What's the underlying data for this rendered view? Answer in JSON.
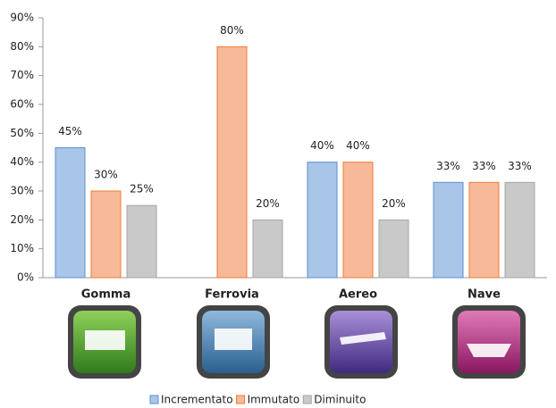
{
  "chart_data": {
    "type": "bar",
    "categories": [
      "Gomma",
      "Ferrovia",
      "Aereo",
      "Nave"
    ],
    "series": [
      {
        "name": "Incrementato",
        "color": "#a9c6e8",
        "stroke": "#5b8fd0",
        "values": [
          45,
          null,
          40,
          33
        ],
        "value_labels": [
          "45%",
          null,
          "40%",
          "33%"
        ]
      },
      {
        "name": "Immutato",
        "color": "#f8b99a",
        "stroke": "#ed7d31",
        "values": [
          30,
          80,
          40,
          33
        ],
        "value_labels": [
          "30%",
          "80%",
          "40%",
          "33%"
        ]
      },
      {
        "name": "Diminuito",
        "color": "#c9c9c9",
        "stroke": "#a5a5a5",
        "values": [
          25,
          20,
          20,
          33
        ],
        "value_labels": [
          "25%",
          "20%",
          "20%",
          "33%"
        ]
      }
    ],
    "ylim": [
      0,
      90
    ],
    "yticks": [
      {
        "value": 0,
        "label": "0%"
      },
      {
        "value": 10,
        "label": "10%"
      },
      {
        "value": 20,
        "label": "20%"
      },
      {
        "value": 30,
        "label": "30%"
      },
      {
        "value": 40,
        "label": "40%"
      },
      {
        "value": 50,
        "label": "50%"
      },
      {
        "value": 60,
        "label": "60%"
      },
      {
        "value": 70,
        "label": "70%"
      },
      {
        "value": 80,
        "label": "80%"
      },
      {
        "value": 90,
        "label": "90%"
      }
    ],
    "grid": false,
    "legend": "bottom"
  }
}
